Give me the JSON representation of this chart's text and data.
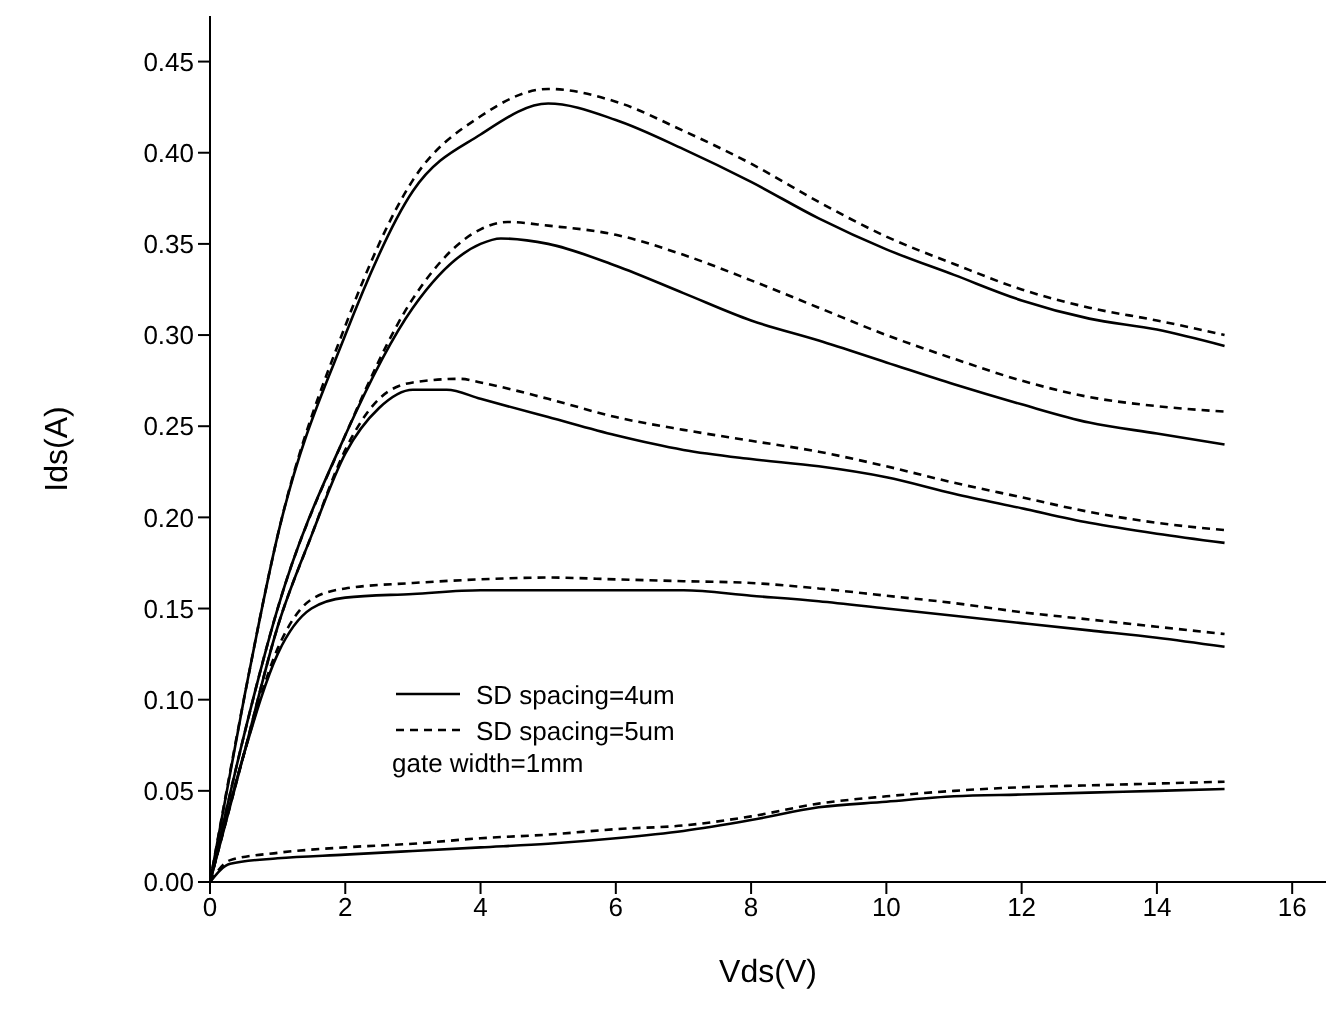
{
  "chart_data": {
    "type": "line",
    "xlabel": "Vds(V)",
    "ylabel": "Ids(A)",
    "xlim": [
      0,
      16.5
    ],
    "xticks": [
      0,
      2,
      4,
      6,
      8,
      10,
      12,
      14,
      16
    ],
    "ylim": [
      0,
      0.475
    ],
    "yticks": [
      {
        "value": 0,
        "label": "0.00"
      },
      0.05,
      {
        "value": 0.1,
        "label": "0.10"
      },
      0.15,
      {
        "value": 0.2,
        "label": "0.20"
      },
      0.25,
      {
        "value": 0.3,
        "label": "0.30"
      },
      0.35,
      {
        "value": 0.4,
        "label": "0.40"
      },
      0.45
    ],
    "grid": false,
    "legend": "bottom left",
    "annotations": [
      "gate width=1mm"
    ],
    "series": [
      {
        "name": "SD spacing=4um",
        "color": "#000000",
        "line_style": "solid",
        "x": [
          0,
          0.5,
          1,
          2,
          3,
          4,
          5,
          6,
          7,
          8,
          9,
          10,
          11,
          12,
          13,
          14,
          15
        ],
        "values": [
          0,
          0.1,
          0.19,
          0.3,
          0.379,
          0.41,
          0.427,
          0.418,
          0.402,
          0.384,
          0.364,
          0.347,
          0.333,
          0.319,
          0.309,
          0.303,
          0.294
        ]
      },
      {
        "name": "SD spacing=5um",
        "color": "#000000",
        "line_style": "dashed",
        "x": [
          0,
          0.5,
          1,
          2,
          3,
          4,
          5,
          6,
          7,
          8,
          9,
          10,
          11,
          12,
          13,
          14,
          15
        ],
        "values": [
          0,
          0.1,
          0.19,
          0.305,
          0.385,
          0.42,
          0.435,
          0.428,
          0.412,
          0.394,
          0.373,
          0.354,
          0.339,
          0.325,
          0.315,
          0.308,
          0.3
        ]
      },
      {
        "color": "#000000",
        "line_style": "solid",
        "x": [
          0,
          0.5,
          1,
          2,
          3,
          4,
          4.3,
          5,
          6,
          7,
          8,
          9,
          10,
          11,
          12,
          13,
          14,
          15
        ],
        "values": [
          0,
          0.08,
          0.15,
          0.245,
          0.315,
          0.35,
          0.353,
          0.35,
          0.338,
          0.323,
          0.308,
          0.297,
          0.285,
          0.273,
          0.262,
          0.252,
          0.246,
          0.24
        ]
      },
      {
        "color": "#000000",
        "line_style": "dashed",
        "x": [
          0,
          0.5,
          1,
          2,
          3,
          4,
          4.4,
          5,
          6,
          7,
          8,
          9,
          10,
          11,
          12,
          13,
          14,
          15
        ],
        "values": [
          0,
          0.08,
          0.15,
          0.245,
          0.32,
          0.358,
          0.362,
          0.36,
          0.355,
          0.344,
          0.33,
          0.315,
          0.3,
          0.287,
          0.275,
          0.266,
          0.261,
          0.258
        ]
      },
      {
        "color": "#000000",
        "line_style": "solid",
        "x": [
          0,
          0.5,
          1,
          1.5,
          2,
          2.5,
          3,
          3.5,
          4,
          5,
          6,
          7,
          8,
          9,
          10,
          11,
          12,
          13,
          14,
          15
        ],
        "values": [
          0,
          0.07,
          0.14,
          0.19,
          0.235,
          0.26,
          0.27,
          0.27,
          0.265,
          0.255,
          0.245,
          0.237,
          0.232,
          0.228,
          0.222,
          0.213,
          0.205,
          0.197,
          0.191,
          0.186
        ]
      },
      {
        "color": "#000000",
        "line_style": "dashed",
        "x": [
          0,
          0.5,
          1,
          1.5,
          2,
          2.5,
          3,
          3.7,
          4,
          5,
          6,
          7,
          8,
          9,
          10,
          11,
          12,
          13,
          14,
          15
        ],
        "values": [
          0,
          0.07,
          0.14,
          0.19,
          0.237,
          0.265,
          0.274,
          0.276,
          0.274,
          0.265,
          0.255,
          0.248,
          0.242,
          0.236,
          0.228,
          0.219,
          0.211,
          0.203,
          0.197,
          0.193
        ]
      },
      {
        "color": "#000000",
        "line_style": "solid",
        "x": [
          0,
          0.5,
          1,
          1.5,
          2,
          3,
          4,
          5,
          6,
          7,
          8,
          9,
          10,
          11,
          12,
          13,
          14,
          15
        ],
        "values": [
          0,
          0.07,
          0.125,
          0.15,
          0.156,
          0.158,
          0.16,
          0.16,
          0.16,
          0.16,
          0.157,
          0.154,
          0.15,
          0.146,
          0.142,
          0.138,
          0.134,
          0.129
        ]
      },
      {
        "color": "#000000",
        "line_style": "dashed",
        "x": [
          0,
          0.5,
          1,
          1.5,
          2,
          3,
          4,
          5,
          6,
          7,
          8,
          9,
          10,
          11,
          12,
          13,
          14,
          15
        ],
        "values": [
          0,
          0.07,
          0.128,
          0.155,
          0.161,
          0.164,
          0.166,
          0.167,
          0.166,
          0.165,
          0.164,
          0.161,
          0.157,
          0.153,
          0.148,
          0.144,
          0.14,
          0.136
        ]
      },
      {
        "color": "#000000",
        "line_style": "solid",
        "x": [
          0,
          0.3,
          1,
          2,
          3,
          4,
          5,
          6,
          7,
          8,
          9,
          10,
          11,
          12,
          13,
          14,
          15
        ],
        "values": [
          0,
          0.01,
          0.013,
          0.015,
          0.017,
          0.019,
          0.021,
          0.024,
          0.028,
          0.034,
          0.041,
          0.044,
          0.047,
          0.048,
          0.049,
          0.05,
          0.051
        ]
      },
      {
        "color": "#000000",
        "line_style": "dashed",
        "x": [
          0,
          0.3,
          1,
          2,
          3,
          4,
          5,
          6,
          7,
          8,
          9,
          10,
          11,
          12,
          13,
          14,
          15
        ],
        "values": [
          0,
          0.012,
          0.016,
          0.019,
          0.021,
          0.024,
          0.026,
          0.029,
          0.031,
          0.036,
          0.043,
          0.047,
          0.05,
          0.052,
          0.053,
          0.054,
          0.055
        ]
      }
    ]
  }
}
